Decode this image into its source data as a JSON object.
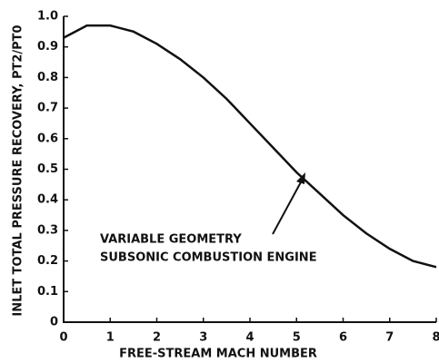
{
  "chart_data": {
    "type": "line",
    "xlabel": "FREE-STREAM MACH NUMBER",
    "ylabel": "INLET TOTAL PRESSURE RECOVERY, PT2/PT0",
    "annotation": [
      "VARIABLE GEOMETRY",
      "SUBSONIC COMBUSTION ENGINE"
    ],
    "x": [
      0,
      0.5,
      1,
      1.5,
      2,
      2.5,
      3,
      3.5,
      4,
      4.5,
      5,
      5.5,
      6,
      6.5,
      7,
      7.5,
      8
    ],
    "series": [
      {
        "name": "VARIABLE GEOMETRY SUBSONIC COMBUSTION ENGINE",
        "color": "#111111",
        "values": [
          0.93,
          0.97,
          0.97,
          0.95,
          0.91,
          0.86,
          0.8,
          0.73,
          0.65,
          0.57,
          0.49,
          0.42,
          0.35,
          0.29,
          0.24,
          0.2,
          0.18
        ]
      }
    ],
    "xlim": [
      0,
      8
    ],
    "xticks": [
      0,
      1,
      2,
      3,
      4,
      5,
      6,
      7,
      8
    ],
    "ylim": [
      0,
      1
    ],
    "yticks": [
      0,
      0.1,
      0.2,
      0.3,
      0.4,
      0.5,
      0.6,
      0.7,
      0.8,
      0.9,
      {
        "value": 1,
        "label": "1.0"
      }
    ]
  }
}
